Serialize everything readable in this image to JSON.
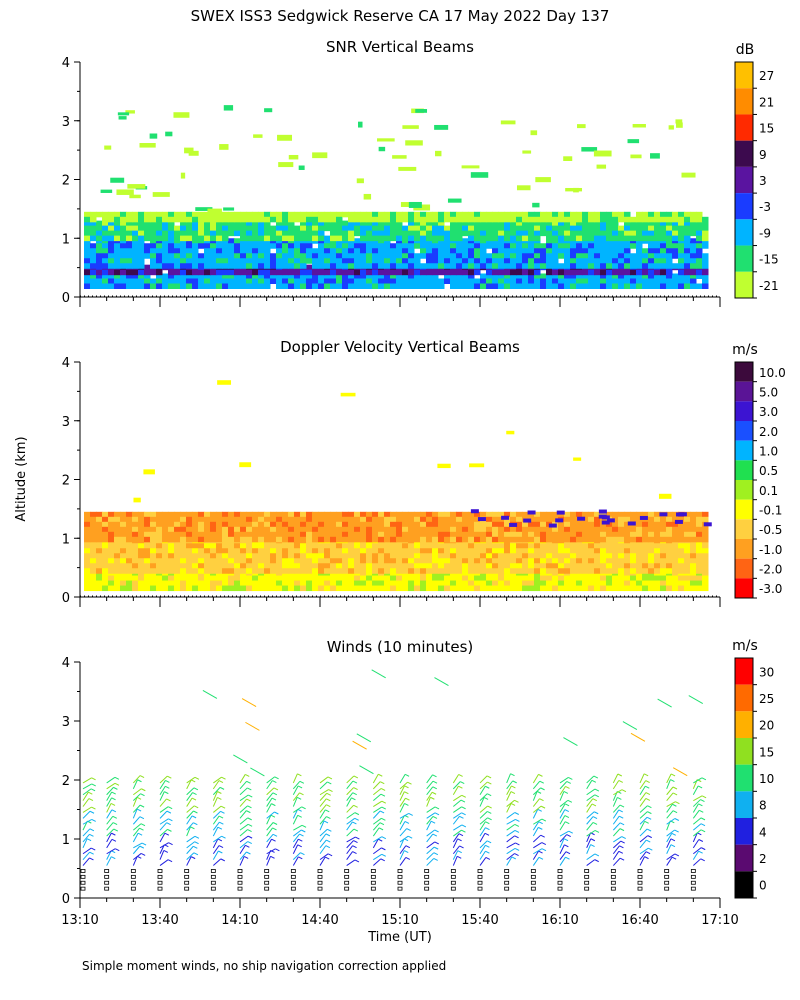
{
  "page": {
    "title": "SWEX ISS3 Sedgwick Reserve CA  17 May 2022 Day 137",
    "shared_ylabel": "Altitude (km)",
    "xlabel": "Time (UT)",
    "footnote": "Simple moment winds, no ship navigation correction applied"
  },
  "chart_data": [
    {
      "type": "heatmap",
      "title": "SNR Vertical Beams",
      "unit": "dB",
      "x_axis": "time",
      "xlim": [
        "13:10",
        "17:10"
      ],
      "ylim": [
        0,
        4
      ],
      "yticks": [
        0,
        1,
        2,
        3,
        4
      ],
      "colorbar": {
        "labels": [
          "27",
          "21",
          "15",
          "9",
          "3",
          "-3",
          "-9",
          "-15",
          "-21"
        ],
        "colors": [
          "#ffc000",
          "#ff8c00",
          "#ff2a00",
          "#3c0a4e",
          "#5a14a0",
          "#1a3cff",
          "#00b4ff",
          "#20e070",
          "#c0ff30"
        ]
      },
      "layers": [
        {
          "from_km": 0.15,
          "to_km": 0.4,
          "level": "-9"
        },
        {
          "from_km": 0.4,
          "to_km": 0.55,
          "level": "3"
        },
        {
          "from_km": 0.55,
          "to_km": 1.0,
          "level": "-9"
        },
        {
          "from_km": 1.0,
          "to_km": 1.3,
          "level": "-15"
        },
        {
          "from_km": 1.3,
          "to_km": 1.45,
          "level": "-21"
        }
      ]
    },
    {
      "type": "heatmap",
      "title": "Doppler Velocity Vertical Beams",
      "unit": "m/s",
      "xlim": [
        "13:10",
        "17:10"
      ],
      "ylim": [
        0,
        4
      ],
      "yticks": [
        0,
        1,
        2,
        3,
        4
      ],
      "colorbar": {
        "labels": [
          "10.0",
          "5.0",
          "3.0",
          "2.0",
          "1.0",
          "0.5",
          "0.1",
          "-0.1",
          "-0.5",
          "-1.0",
          "-2.0",
          "-3.0"
        ],
        "colors": [
          "#3c0a3c",
          "#5a1496",
          "#3c14d2",
          "#1a50ff",
          "#00b4ff",
          "#20e050",
          "#a0f020",
          "#ffff00",
          "#ffd040",
          "#ffa020",
          "#ff6414",
          "#ff0000"
        ]
      },
      "layers": [
        {
          "from_km": 0.15,
          "to_km": 0.45,
          "level": "-0.1"
        },
        {
          "from_km": 0.45,
          "to_km": 1.0,
          "level": "-0.5"
        },
        {
          "from_km": 1.0,
          "to_km": 1.45,
          "level": "-1.0"
        }
      ]
    },
    {
      "type": "scatter",
      "title": "Winds (10 minutes)",
      "unit": "m/s",
      "xlim": [
        "13:10",
        "17:10"
      ],
      "ylim": [
        0,
        4
      ],
      "yticks": [
        0,
        1,
        2,
        3,
        4
      ],
      "xticks": [
        "13:10",
        "13:40",
        "14:10",
        "14:40",
        "15:10",
        "15:40",
        "16:10",
        "16:40",
        "17:10"
      ],
      "colorbar": {
        "labels": [
          "30",
          "25",
          "20",
          "15",
          "10",
          "8",
          "4",
          "2",
          "0"
        ],
        "colors": [
          "#ff0000",
          "#ff6a00",
          "#ffb000",
          "#90e020",
          "#20e070",
          "#10b0f0",
          "#2020e0",
          "#5a0a70",
          "#000000"
        ]
      },
      "profiles_times": [
        "13:10",
        "13:20",
        "13:30",
        "13:40",
        "13:50",
        "14:00",
        "14:10",
        "14:20",
        "14:30",
        "14:40",
        "14:50",
        "15:00",
        "15:10",
        "15:20",
        "15:30",
        "15:40",
        "15:50",
        "16:00",
        "16:10",
        "16:20",
        "16:30",
        "16:40",
        "16:50",
        "17:00"
      ]
    }
  ]
}
